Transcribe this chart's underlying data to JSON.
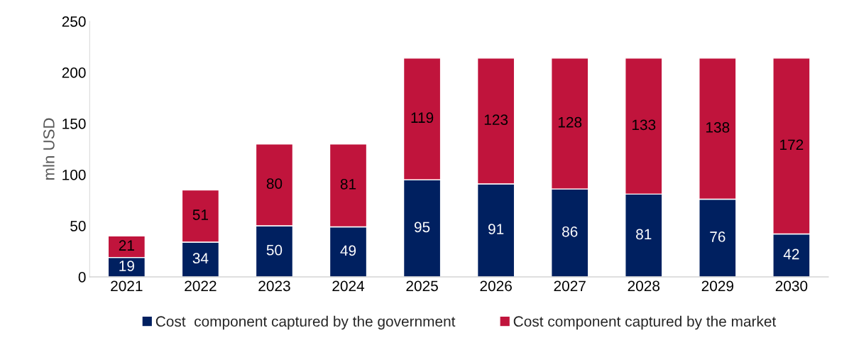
{
  "chart_data": {
    "type": "bar",
    "stacked": true,
    "ylabel": "mln USD",
    "categories": [
      "2021",
      "2022",
      "2023",
      "2024",
      "2025",
      "2026",
      "2027",
      "2028",
      "2029",
      "2030"
    ],
    "series": [
      {
        "name": "Cost  component captured by the government",
        "color": "#002060",
        "values": [
          19,
          34,
          50,
          49,
          95,
          91,
          86,
          81,
          76,
          42
        ]
      },
      {
        "name": "Cost component captured by the market",
        "color": "#c0143c",
        "values": [
          21,
          51,
          80,
          81,
          119,
          123,
          128,
          133,
          138,
          172
        ]
      }
    ],
    "ylim": [
      0,
      250
    ],
    "yticks": [
      0,
      50,
      100,
      150,
      200,
      250
    ],
    "grid": false,
    "legend": "bottom",
    "data_labels": true
  }
}
